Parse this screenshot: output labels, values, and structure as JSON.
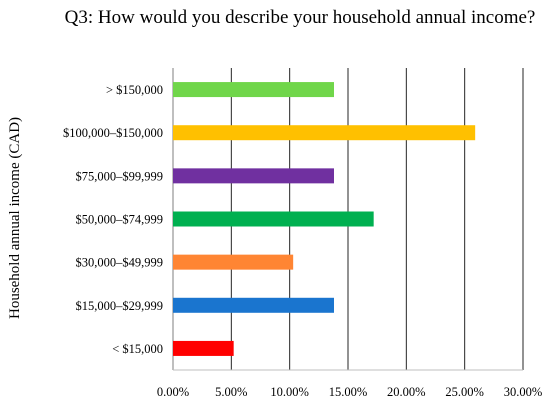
{
  "chart_data": {
    "type": "bar",
    "orientation": "horizontal",
    "title": "Q3: How would you describe your household annual income?",
    "ylabel": "Household annual income (CAD)",
    "xlabel": "",
    "categories": [
      "< $15,000",
      "$15,000–$29,999",
      "$30,000–$49,999",
      "$50,000–$74,999",
      "$75,000–$99,999",
      "$100,000–$150,000",
      "> $150,000"
    ],
    "values": [
      5.2,
      13.8,
      10.3,
      17.2,
      13.8,
      25.9,
      13.8
    ],
    "colors": [
      "#ff0000",
      "#1a75cf",
      "#ff8533",
      "#00b050",
      "#7030a0",
      "#ffc000",
      "#70d64a"
    ],
    "xlim": [
      0,
      30
    ],
    "xticks": [
      0,
      5,
      10,
      15,
      20,
      25,
      30
    ],
    "xtick_labels": [
      "0.00%",
      "5.00%",
      "10.00%",
      "15.00%",
      "20.00%",
      "25.00%",
      "30.00%"
    ],
    "grid": "vertical major gridlines"
  }
}
